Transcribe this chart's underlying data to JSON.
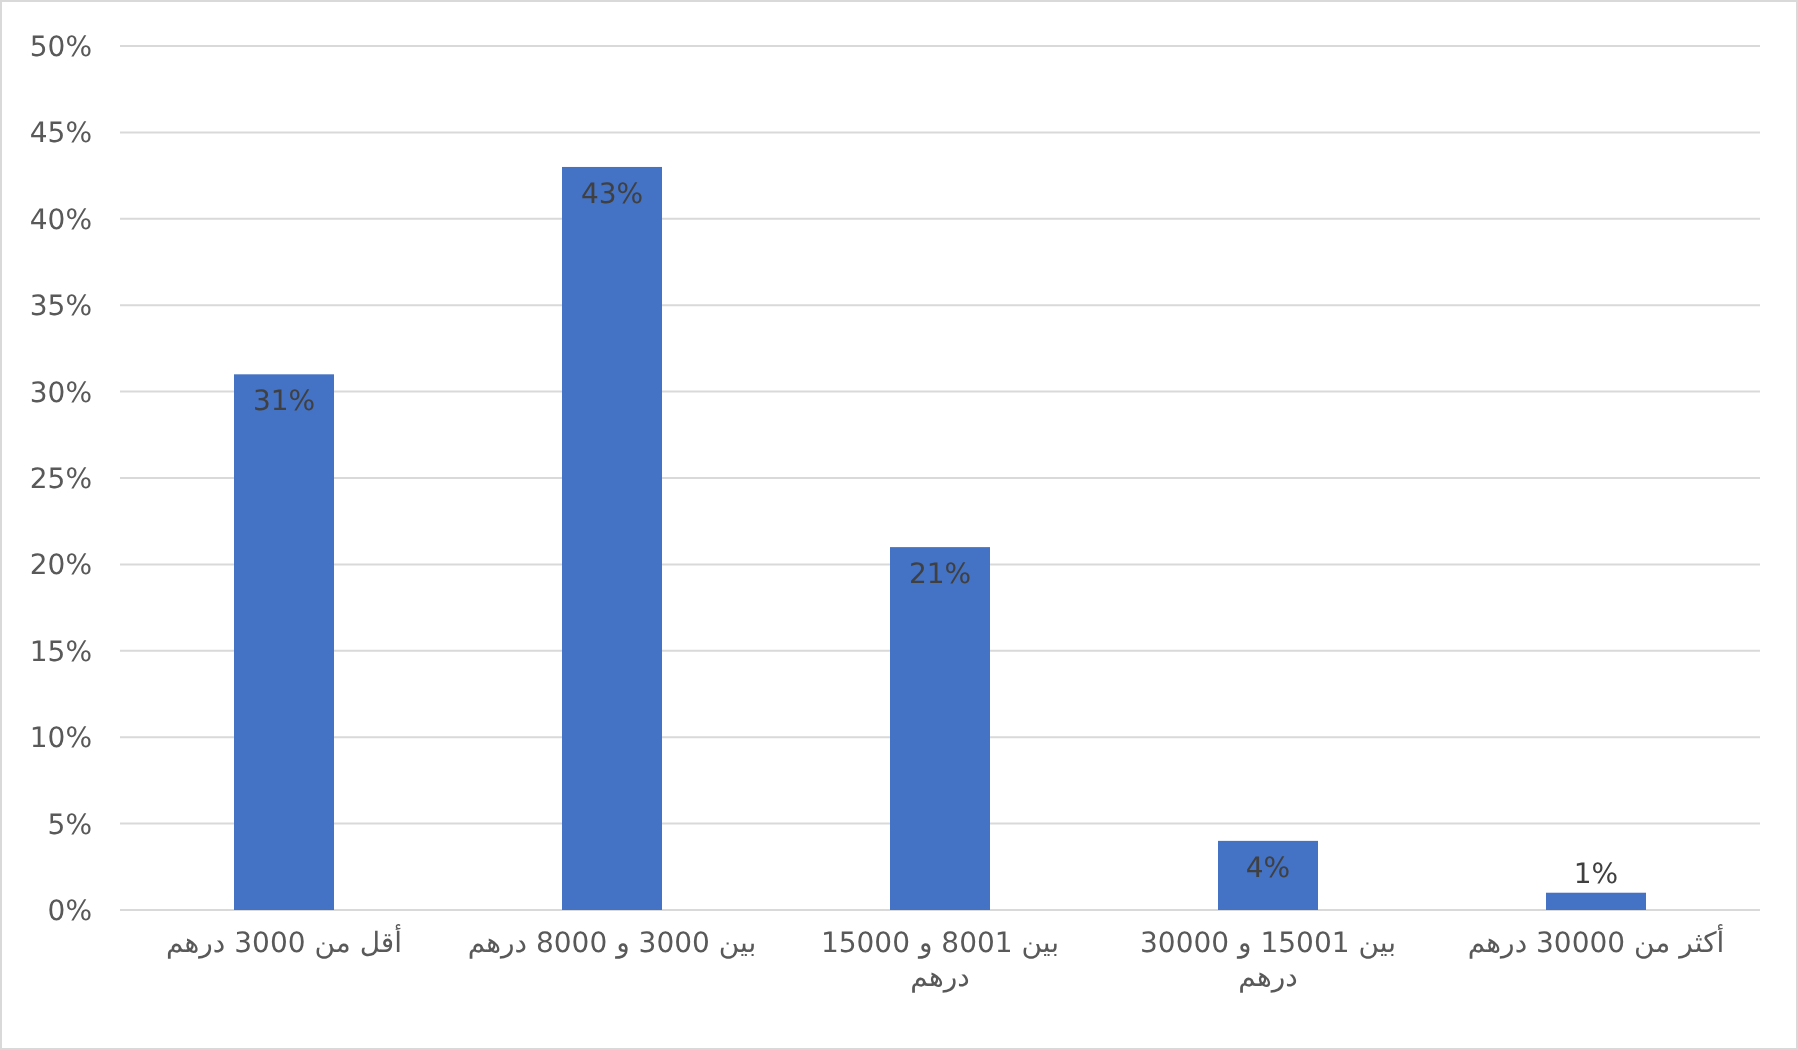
{
  "chart_data": {
    "type": "bar",
    "categories": [
      "أقل من 3000 درهم",
      "بين 3000 و 8000 درهم",
      "بين 8001 و 15000 درهم",
      "بين 15001 و 30000 درهم",
      "أكثر من 30000 درهم"
    ],
    "values": [
      31,
      43,
      21,
      4,
      1
    ],
    "value_labels": [
      "31%",
      "43%",
      "21%",
      "4%",
      "1%"
    ],
    "color": "#4472c4",
    "ylim": [
      0,
      50
    ],
    "yticks": [
      {
        "value": 0,
        "label": "0%"
      },
      {
        "value": 5,
        "label": "5%"
      },
      {
        "value": 10,
        "label": "10%"
      },
      {
        "value": 15,
        "label": "15%"
      },
      {
        "value": 20,
        "label": "20%"
      },
      {
        "value": 25,
        "label": "25%"
      },
      {
        "value": 30,
        "label": "30%"
      },
      {
        "value": 35,
        "label": "35%"
      },
      {
        "value": 40,
        "label": "40%"
      },
      {
        "value": 45,
        "label": "45%"
      },
      {
        "value": 50,
        "label": "50%"
      }
    ],
    "grid": "y"
  }
}
